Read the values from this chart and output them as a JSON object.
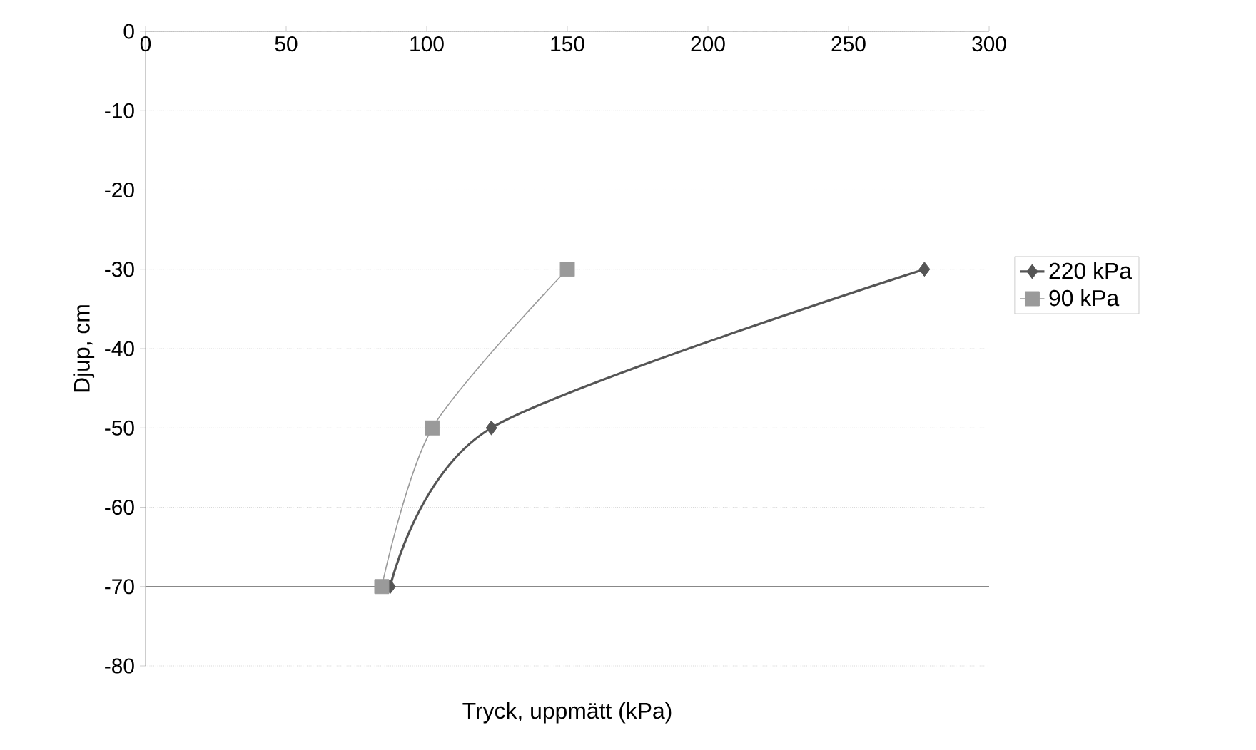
{
  "chart_data": {
    "type": "line",
    "xlabel": "Tryck, uppmätt (kPa)",
    "ylabel": "Djup, cm",
    "xlim": [
      0,
      300
    ],
    "xticks": [
      0,
      50,
      100,
      150,
      200,
      250,
      300
    ],
    "ylim": [
      -80,
      0
    ],
    "yticks": [
      -80,
      -70,
      -60,
      -50,
      -40,
      -30,
      -20,
      -10,
      0
    ],
    "grid": "y",
    "legend": "right",
    "ref_lines": [
      {
        "axis": "y",
        "value": -70,
        "color": "#888888"
      }
    ],
    "series": [
      {
        "name": "220 kPa",
        "color": "#555555",
        "marker": "diamond",
        "x": [
          277,
          123,
          87
        ],
        "values": [
          -30,
          -50,
          -70
        ]
      },
      {
        "name": "90 kPa",
        "color": "#9a9a9a",
        "marker": "square",
        "x": [
          150,
          102,
          84
        ],
        "values": [
          -30,
          -50,
          -70
        ]
      }
    ]
  }
}
